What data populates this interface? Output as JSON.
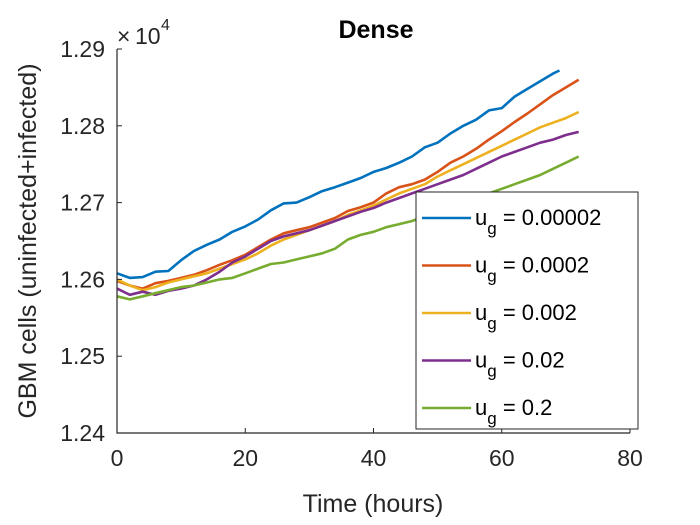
{
  "chart_data": {
    "type": "line",
    "title": "Dense",
    "xlabel": "Time (hours)",
    "ylabel": "GBM cells (uninfected+infected)",
    "xlim": [
      0,
      80
    ],
    "ylim": [
      12400,
      12900
    ],
    "x_ticks": [
      "0",
      "20",
      "40",
      "60",
      "80"
    ],
    "y_ticks": [
      "1.24",
      "1.25",
      "1.26",
      "1.27",
      "1.28",
      "1.29"
    ],
    "y_multiplier": {
      "base": "10",
      "exponent": "4"
    },
    "grid": false,
    "legend_position": "lower-right",
    "series": [
      {
        "name": "u_g = 0.00002",
        "label_base": "u",
        "label_sub": "g",
        "label_value": " = 0.00002",
        "color": "#0072BD",
        "x": [
          0,
          2,
          4,
          6,
          8,
          10,
          12,
          14,
          16,
          18,
          20,
          22,
          24,
          26,
          28,
          30,
          32,
          34,
          36,
          38,
          40,
          42,
          44,
          46,
          48,
          50,
          52,
          54,
          56,
          58,
          60,
          62,
          64,
          66,
          68,
          69
        ],
        "y": [
          12608,
          12602,
          12603,
          12610,
          12611,
          12625,
          12637,
          12645,
          12652,
          12662,
          12669,
          12678,
          12690,
          12699,
          12700,
          12707,
          12715,
          12720,
          12726,
          12732,
          12740,
          12745,
          12752,
          12760,
          12772,
          12778,
          12790,
          12800,
          12808,
          12820,
          12823,
          12838,
          12848,
          12858,
          12868,
          12872
        ]
      },
      {
        "name": "u_g = 0.0002",
        "label_base": "u",
        "label_sub": "g",
        "label_value": " = 0.0002",
        "color": "#D95319",
        "x": [
          0,
          2,
          4,
          6,
          8,
          10,
          12,
          14,
          16,
          18,
          20,
          22,
          24,
          26,
          28,
          30,
          32,
          34,
          36,
          38,
          40,
          42,
          44,
          46,
          48,
          50,
          52,
          54,
          56,
          58,
          60,
          62,
          64,
          66,
          68,
          70,
          72
        ],
        "y": [
          12598,
          12592,
          12588,
          12595,
          12598,
          12602,
          12606,
          12612,
          12619,
          12625,
          12632,
          12642,
          12652,
          12660,
          12664,
          12668,
          12674,
          12680,
          12689,
          12694,
          12700,
          12712,
          12720,
          12724,
          12730,
          12740,
          12752,
          12760,
          12770,
          12782,
          12793,
          12805,
          12816,
          12828,
          12840,
          12850,
          12860
        ]
      },
      {
        "name": "u_g = 0.002",
        "label_base": "u",
        "label_sub": "g",
        "label_value": " = 0.002",
        "color": "#EDB120",
        "x": [
          0,
          2,
          4,
          6,
          8,
          10,
          12,
          14,
          16,
          18,
          20,
          22,
          24,
          26,
          28,
          30,
          32,
          34,
          36,
          38,
          40,
          42,
          44,
          46,
          48,
          50,
          52,
          54,
          56,
          58,
          60,
          62,
          64,
          66,
          68,
          70,
          72
        ],
        "y": [
          12600,
          12592,
          12586,
          12590,
          12596,
          12600,
          12604,
          12608,
          12614,
          12620,
          12626,
          12634,
          12644,
          12652,
          12658,
          12664,
          12670,
          12676,
          12684,
          12690,
          12696,
          12704,
          12712,
          12718,
          12724,
          12734,
          12742,
          12750,
          12758,
          12766,
          12774,
          12782,
          12790,
          12798,
          12804,
          12810,
          12818
        ]
      },
      {
        "name": "u_g = 0.02",
        "label_base": "u",
        "label_sub": "g",
        "label_value": " = 0.02",
        "color": "#7E2F8E",
        "x": [
          0,
          2,
          4,
          6,
          8,
          10,
          12,
          14,
          16,
          18,
          20,
          22,
          24,
          26,
          28,
          30,
          32,
          34,
          36,
          38,
          40,
          42,
          44,
          46,
          48,
          50,
          52,
          54,
          56,
          58,
          60,
          62,
          64,
          66,
          68,
          70,
          72
        ],
        "y": [
          12588,
          12580,
          12584,
          12580,
          12585,
          12588,
          12592,
          12600,
          12610,
          12622,
          12630,
          12640,
          12650,
          12656,
          12660,
          12664,
          12670,
          12676,
          12682,
          12688,
          12693,
          12700,
          12706,
          12712,
          12718,
          12724,
          12730,
          12736,
          12744,
          12752,
          12760,
          12766,
          12772,
          12778,
          12782,
          12788,
          12792
        ]
      },
      {
        "name": "u_g = 0.2",
        "label_base": "u",
        "label_sub": "g",
        "label_value": " = 0.2",
        "color": "#77AC30",
        "x": [
          0,
          2,
          4,
          6,
          8,
          10,
          12,
          14,
          16,
          18,
          20,
          22,
          24,
          26,
          28,
          30,
          32,
          34,
          36,
          38,
          40,
          42,
          44,
          46,
          48,
          50,
          52,
          54,
          56,
          58,
          60,
          62,
          64,
          66,
          68,
          70,
          72
        ],
        "y": [
          12578,
          12574,
          12578,
          12582,
          12586,
          12590,
          12592,
          12596,
          12600,
          12602,
          12608,
          12614,
          12620,
          12622,
          12626,
          12630,
          12634,
          12640,
          12652,
          12658,
          12662,
          12668,
          12672,
          12676,
          12682,
          12688,
          12694,
          12700,
          12706,
          12712,
          12718,
          12724,
          12730,
          12736,
          12744,
          12752,
          12760
        ]
      }
    ]
  }
}
